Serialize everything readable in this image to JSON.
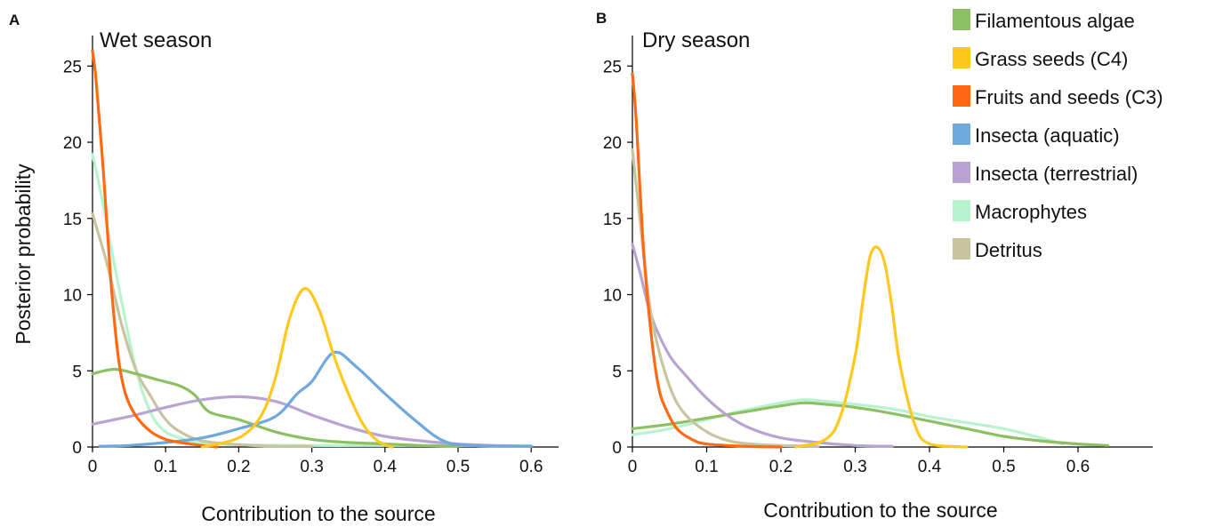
{
  "y_axis_label": "Posterior probability",
  "legend": {
    "items": [
      {
        "label": "Filamentous algae",
        "color": "#8dc063"
      },
      {
        "label": "Grass seeds (C4)",
        "color": "#ffc81e"
      },
      {
        "label": "Fruits and seeds (C3)",
        "color": "#ff6a13"
      },
      {
        "label": "Insecta (aquatic)",
        "color": "#6fa8dc"
      },
      {
        "label": "Insecta (terrestrial)",
        "color": "#b9a3d2"
      },
      {
        "label": "Macrophytes",
        "color": "#b8f3cf"
      },
      {
        "label": "Detritus",
        "color": "#c9c4a0"
      }
    ]
  },
  "chart_data": [
    {
      "type": "line",
      "panel_letter": "A",
      "title": "Wet season",
      "xlabel": "Contribution to the source",
      "ylabel": "Posterior probability",
      "xlim": [
        0,
        0.62
      ],
      "ylim": [
        0,
        27
      ],
      "x_ticks": [
        "0",
        "0.1",
        "0.2",
        "0.3",
        "0.4",
        "0.5",
        "0.6"
      ],
      "y_ticks": [
        "0",
        "5",
        "10",
        "15",
        "20",
        "25"
      ],
      "series": [
        {
          "name": "Macrophytes",
          "color": "#b8f3cf",
          "x": [
            0,
            0.01,
            0.02,
            0.04,
            0.06,
            0.08,
            0.1,
            0.12,
            0.14,
            0.2,
            0.3,
            0.4,
            0.5,
            0.6
          ],
          "y": [
            19.2,
            17.0,
            14.5,
            9.5,
            5.0,
            2.2,
            1.0,
            0.6,
            0.3,
            0.15,
            0.1,
            0.1,
            0.1,
            0.1
          ]
        },
        {
          "name": "Detritus",
          "color": "#c9c4a0",
          "x": [
            0,
            0.02,
            0.04,
            0.06,
            0.08,
            0.1,
            0.12,
            0.15,
            0.2,
            0.25,
            0.3
          ],
          "y": [
            15.3,
            12.0,
            8.0,
            5.0,
            3.3,
            1.8,
            1.0,
            0.4,
            0.15,
            0.05,
            0.05
          ]
        },
        {
          "name": "Filamentous algae",
          "color": "#8dc063",
          "x": [
            0,
            0.03,
            0.06,
            0.09,
            0.12,
            0.14,
            0.16,
            0.2,
            0.25,
            0.3,
            0.35,
            0.4,
            0.45,
            0.5
          ],
          "y": [
            4.8,
            5.1,
            4.8,
            4.4,
            4.0,
            3.4,
            2.3,
            1.8,
            1.0,
            0.5,
            0.3,
            0.2,
            0.1,
            0.05
          ]
        },
        {
          "name": "Insecta (terrestrial)",
          "color": "#b9a3d2",
          "x": [
            0,
            0.05,
            0.1,
            0.15,
            0.2,
            0.25,
            0.3,
            0.35,
            0.4,
            0.45,
            0.5,
            0.55,
            0.6
          ],
          "y": [
            1.5,
            2.0,
            2.6,
            3.1,
            3.3,
            3.0,
            2.1,
            1.3,
            0.7,
            0.4,
            0.2,
            0.1,
            0.05
          ]
        },
        {
          "name": "Insecta (aquatic)",
          "color": "#6fa8dc",
          "x": [
            0.01,
            0.05,
            0.1,
            0.15,
            0.2,
            0.25,
            0.28,
            0.3,
            0.33,
            0.36,
            0.4,
            0.44,
            0.48,
            0.52,
            0.6
          ],
          "y": [
            0.05,
            0.1,
            0.3,
            0.6,
            1.2,
            2.0,
            3.5,
            4.3,
            6.2,
            5.3,
            3.5,
            1.8,
            0.4,
            0.1,
            0.05
          ]
        },
        {
          "name": "Fruits and seeds (C3)",
          "color": "#ff6a13",
          "x": [
            0,
            0.005,
            0.015,
            0.025,
            0.035,
            0.045,
            0.06,
            0.08,
            0.1,
            0.12,
            0.15,
            0.17
          ],
          "y": [
            26.0,
            24.0,
            18.0,
            11.0,
            6.0,
            3.5,
            2.0,
            1.0,
            0.5,
            0.3,
            0.1,
            0.0
          ]
        },
        {
          "name": "Grass seeds (C4)",
          "color": "#ffc81e",
          "x": [
            0.15,
            0.2,
            0.23,
            0.25,
            0.27,
            0.29,
            0.31,
            0.33,
            0.35,
            0.37,
            0.39,
            0.41
          ],
          "y": [
            0.0,
            0.6,
            2.0,
            4.5,
            8.5,
            10.4,
            9.0,
            6.0,
            3.5,
            1.5,
            0.4,
            0.0
          ]
        }
      ]
    },
    {
      "type": "line",
      "panel_letter": "B",
      "title": "Dry season",
      "xlabel": "Contribution to the source",
      "ylabel": "",
      "xlim": [
        0,
        0.68
      ],
      "ylim": [
        0,
        27
      ],
      "x_ticks": [
        "0",
        "0.1",
        "0.2",
        "0.3",
        "0.4",
        "0.5",
        "0.6"
      ],
      "y_ticks": [
        "0",
        "5",
        "10",
        "15",
        "20",
        "25"
      ],
      "series": [
        {
          "name": "Macrophytes",
          "color": "#b8f3cf",
          "x": [
            0,
            0.05,
            0.1,
            0.15,
            0.2,
            0.23,
            0.26,
            0.3,
            0.35,
            0.4,
            0.45,
            0.5,
            0.55,
            0.58
          ],
          "y": [
            0.8,
            1.2,
            1.8,
            2.4,
            2.9,
            3.1,
            3.0,
            2.8,
            2.5,
            2.0,
            1.6,
            1.2,
            0.6,
            0.2
          ]
        },
        {
          "name": "Filamentous algae",
          "color": "#8dc063",
          "x": [
            0,
            0.05,
            0.1,
            0.15,
            0.2,
            0.23,
            0.26,
            0.3,
            0.35,
            0.4,
            0.45,
            0.5,
            0.55,
            0.6,
            0.64
          ],
          "y": [
            1.2,
            1.5,
            1.9,
            2.3,
            2.7,
            2.9,
            2.8,
            2.6,
            2.2,
            1.7,
            1.2,
            0.7,
            0.4,
            0.2,
            0.1
          ]
        },
        {
          "name": "Insecta (terrestrial)",
          "color": "#b9a3d2",
          "x": [
            0,
            0.01,
            0.02,
            0.03,
            0.05,
            0.07,
            0.1,
            0.13,
            0.16,
            0.2,
            0.25,
            0.3,
            0.35
          ],
          "y": [
            13.3,
            11.5,
            9.5,
            8.0,
            6.0,
            4.8,
            3.2,
            2.0,
            1.2,
            0.6,
            0.3,
            0.1,
            0.05
          ]
        },
        {
          "name": "Detritus",
          "color": "#c9c4a0",
          "x": [
            0,
            0.01,
            0.02,
            0.03,
            0.05,
            0.07,
            0.1,
            0.13,
            0.16,
            0.2,
            0.25
          ],
          "y": [
            19.5,
            15.0,
            10.5,
            7.5,
            4.0,
            2.2,
            1.0,
            0.4,
            0.2,
            0.1,
            0.05
          ]
        },
        {
          "name": "Fruits and seeds (C3)",
          "color": "#ff6a13",
          "x": [
            0,
            0.005,
            0.015,
            0.025,
            0.035,
            0.045,
            0.06,
            0.08,
            0.1,
            0.15,
            0.2
          ],
          "y": [
            24.5,
            21.5,
            13.0,
            7.5,
            4.0,
            2.5,
            1.2,
            0.5,
            0.2,
            0.05,
            0.0
          ]
        },
        {
          "name": "Grass seeds (C4)",
          "color": "#ffc81e",
          "x": [
            0.22,
            0.26,
            0.28,
            0.3,
            0.31,
            0.32,
            0.33,
            0.34,
            0.35,
            0.36,
            0.38,
            0.4,
            0.45
          ],
          "y": [
            0.0,
            0.5,
            2.0,
            6.0,
            9.5,
            12.5,
            13.1,
            12.0,
            9.0,
            5.5,
            1.5,
            0.2,
            0.0
          ]
        }
      ]
    }
  ]
}
